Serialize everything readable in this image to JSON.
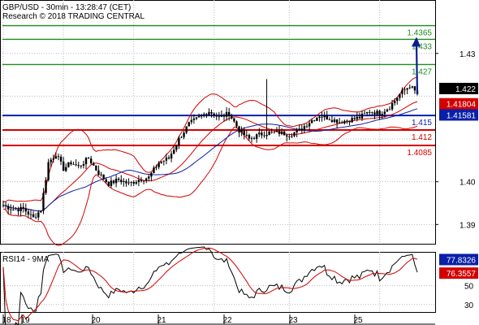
{
  "header": {
    "line1": "GBP/USD - 30min - 13:28:47 (CET)",
    "line2": "Research © 2018 TRADING CENTRAL"
  },
  "chart_data": [
    {
      "type": "candlestick",
      "symbol": "GBP/USD",
      "timeframe": "30min",
      "ylim": [
        1.3855,
        1.4425
      ],
      "y_ticks": [
        1.39,
        1.4,
        1.41,
        1.42,
        1.43
      ],
      "y_tick_labels": [
        "1.39",
        "1.40",
        "",
        "",
        "1.43"
      ],
      "x_tick_labels": [
        "18",
        "19",
        "20",
        "21",
        "22",
        "23",
        "25"
      ],
      "current_price": "1.422",
      "levels": [
        {
          "label": "1.4365",
          "value": 1.4365,
          "color": "#1e8c1e"
        },
        {
          "label": "1.433",
          "value": 1.4333,
          "color": "#1e8c1e"
        },
        {
          "label": "1.427",
          "value": 1.4274,
          "color": "#1e8c1e"
        },
        {
          "label": "1.415",
          "value": 1.4155,
          "color": "#0a1fa8"
        },
        {
          "label": "1.412",
          "value": 1.4121,
          "color": "#d40000"
        },
        {
          "label": "1.4085",
          "value": 1.4085,
          "color": "#d40000"
        }
      ],
      "indicator_tags": [
        {
          "label": "1.41804",
          "value": 1.41804,
          "color": "#d40000"
        },
        {
          "label": "1.41581",
          "value": 1.41581,
          "color": "#0a1fa8"
        }
      ],
      "close_anchors": [
        [
          0,
          1.3945
        ],
        [
          4,
          1.3935
        ],
        [
          8,
          1.3937
        ],
        [
          12,
          1.3915
        ],
        [
          15,
          1.3935
        ],
        [
          18,
          1.4045
        ],
        [
          21,
          1.4065
        ],
        [
          24,
          1.403
        ],
        [
          27,
          1.4045
        ],
        [
          30,
          1.4035
        ],
        [
          34,
          1.4055
        ],
        [
          38,
          1.402
        ],
        [
          42,
          1.3995
        ],
        [
          46,
          1.4005
        ],
        [
          50,
          1.3995
        ],
        [
          54,
          1.4005
        ],
        [
          58,
          1.401
        ],
        [
          62,
          1.4045
        ],
        [
          66,
          1.4055
        ],
        [
          70,
          1.41
        ],
        [
          74,
          1.4135
        ],
        [
          78,
          1.415
        ],
        [
          82,
          1.4165
        ],
        [
          86,
          1.415
        ],
        [
          90,
          1.416
        ],
        [
          94,
          1.412
        ],
        [
          98,
          1.41
        ],
        [
          102,
          1.411
        ],
        [
          106,
          1.4115
        ],
        [
          110,
          1.4115
        ],
        [
          114,
          1.411
        ],
        [
          118,
          1.412
        ],
        [
          122,
          1.414
        ],
        [
          126,
          1.4155
        ],
        [
          130,
          1.4148
        ],
        [
          134,
          1.414
        ],
        [
          138,
          1.4145
        ],
        [
          142,
          1.415
        ],
        [
          146,
          1.4165
        ],
        [
          150,
          1.416
        ],
        [
          154,
          1.4175
        ],
        [
          158,
          1.4205
        ],
        [
          162,
          1.4225
        ],
        [
          165,
          1.4205
        ]
      ],
      "series": [
        {
          "name": "Bollinger upper",
          "color": "#d40000"
        },
        {
          "name": "Bollinger middle",
          "color": "#d40000"
        },
        {
          "name": "Bollinger lower",
          "color": "#d40000"
        },
        {
          "name": "Moving average",
          "color": "#0a1fa8"
        }
      ],
      "projection": {
        "from": 1.4205,
        "to": 1.4333,
        "color": "#0a1f8f"
      }
    },
    {
      "type": "line",
      "title": "RSI14 - 9MA",
      "ylim": [
        22,
        86
      ],
      "y_ticks": [
        30,
        50
      ],
      "rsi_value": "77.8326",
      "ma_value": "76.3557",
      "series": [
        {
          "name": "RSI14",
          "color": "#000000"
        },
        {
          "name": "9MA",
          "color": "#d40000"
        }
      ]
    }
  ]
}
